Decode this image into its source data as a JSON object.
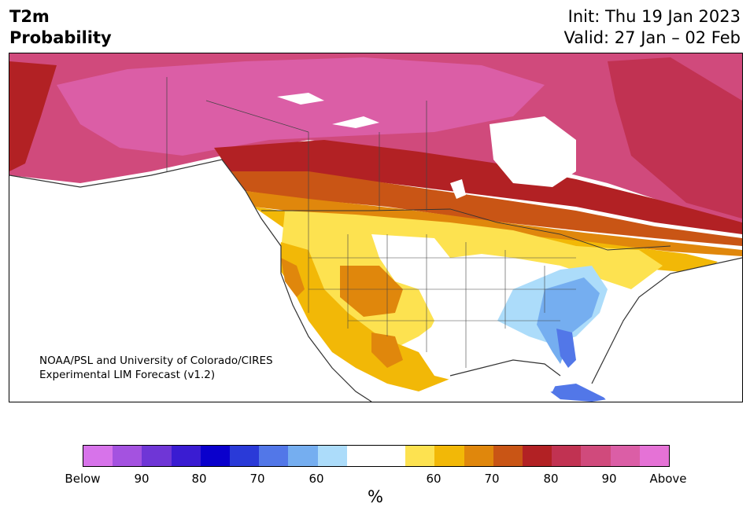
{
  "header": {
    "title_line1": "T2m",
    "title_line2": "Probability",
    "init": "Init: Thu 19 Jan 2023",
    "valid": "Valid: 27 Jan – 02 Feb"
  },
  "map": {
    "credit_line1": "NOAA/PSL and University of Colorado/CIRES",
    "credit_line2": "Experimental LIM Forecast (v1.2)",
    "region": "North America",
    "variable": "T2m"
  },
  "colorbar": {
    "unit": "%",
    "tick_labels": [
      "Below",
      "90",
      "80",
      "70",
      "60",
      "60",
      "70",
      "80",
      "90",
      "Above"
    ],
    "below_colors": [
      "#d773ea",
      "#a452e0",
      "#6f36d6",
      "#3a1cd2",
      "#0a00cc",
      "#2a3ad8",
      "#5277e8",
      "#75aef0",
      "#acdcfa"
    ],
    "neutral_color": "#ffffff",
    "above_colors": [
      "#fde250",
      "#f2b807",
      "#e0870c",
      "#c95515",
      "#b22124",
      "#c13252",
      "#d04a7c",
      "#db5ea6",
      "#e572d6"
    ]
  },
  "colors": {
    "accent_magenta": "#db5ea6",
    "accent_red": "#b22124",
    "accent_yellow": "#fde250",
    "accent_blue": "#5277e8"
  }
}
